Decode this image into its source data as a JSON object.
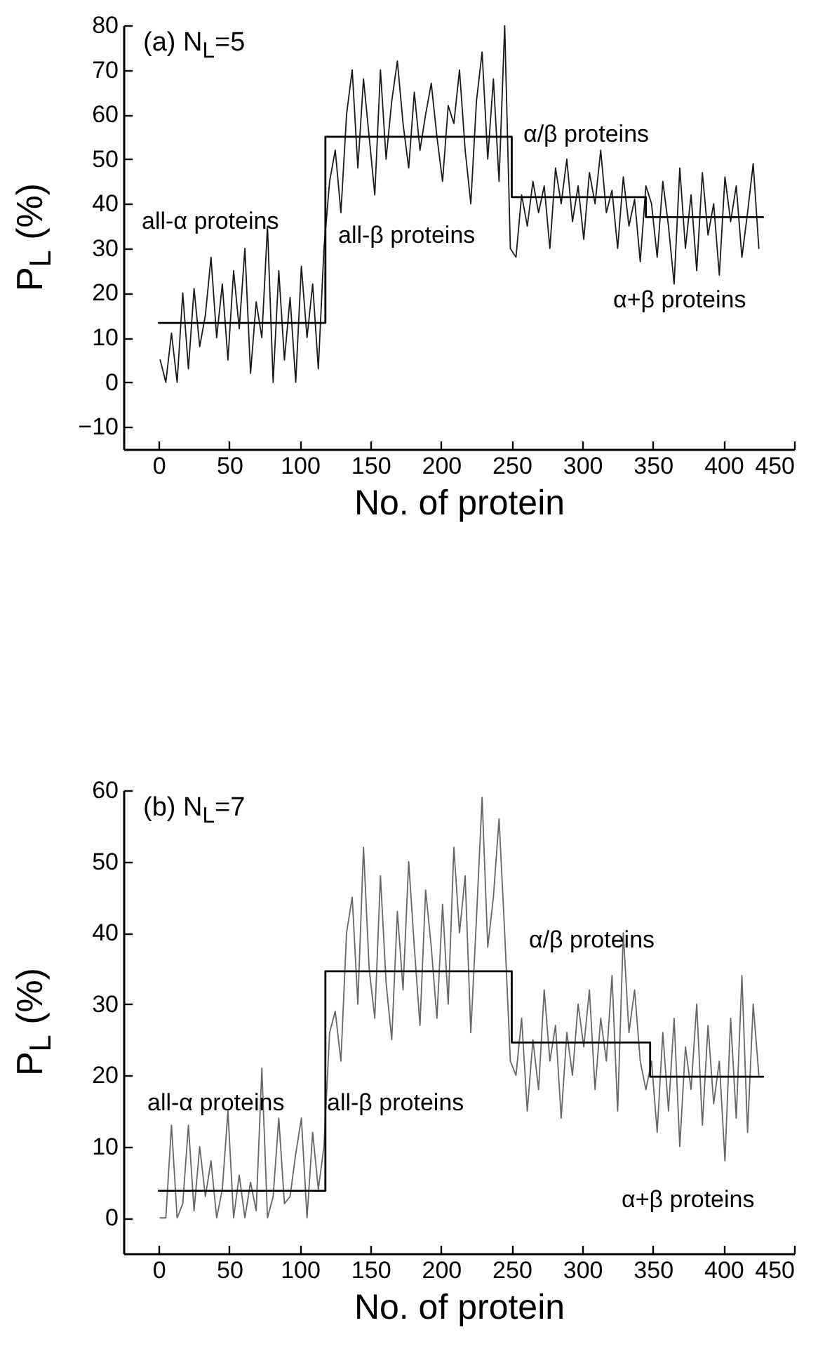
{
  "chart_data": [
    {
      "type": "line",
      "title": "(a) N$_{L}$=5",
      "xlabel": "No. of protein",
      "ylabel": "P$_{L}$ (%)",
      "xlim": [
        -25,
        450
      ],
      "ylim": [
        -15,
        80
      ],
      "xticks": [
        0,
        50,
        100,
        150,
        200,
        250,
        300,
        350,
        400,
        450
      ],
      "yticks": [
        -10,
        0,
        10,
        20,
        30,
        40,
        50,
        60,
        70,
        80
      ],
      "grid": false,
      "annotations": [
        "all-α proteins",
        "all-β proteins",
        "α/β proteins",
        "α+β proteins"
      ],
      "series": [
        {
          "type": "line",
          "color": "#1a1a1a",
          "x": [
            1,
            5,
            9,
            13,
            17,
            21,
            25,
            29,
            33,
            37,
            41,
            45,
            49,
            53,
            57,
            61,
            65,
            69,
            73,
            77,
            81,
            85,
            89,
            93,
            97,
            101,
            105,
            109,
            113,
            117,
            121,
            125,
            129,
            133,
            137,
            141,
            145,
            149,
            153,
            157,
            161,
            165,
            169,
            173,
            177,
            181,
            185,
            189,
            193,
            197,
            201,
            205,
            209,
            213,
            217,
            221,
            225,
            229,
            233,
            237,
            241,
            245,
            249,
            253,
            257,
            261,
            265,
            269,
            273,
            277,
            281,
            285,
            289,
            293,
            297,
            301,
            305,
            309,
            313,
            317,
            321,
            325,
            329,
            333,
            337,
            341,
            345,
            349,
            353,
            357,
            361,
            365,
            369,
            373,
            377,
            381,
            385,
            389,
            393,
            397,
            401,
            405,
            409,
            413,
            417,
            421,
            425
          ],
          "values": [
            5,
            0,
            11,
            0,
            20,
            3,
            21,
            8,
            15,
            28,
            10,
            22,
            5,
            25,
            12,
            30,
            2,
            18,
            10,
            35,
            0,
            25,
            5,
            19,
            0,
            26,
            10,
            22,
            3,
            30,
            45,
            52,
            38,
            60,
            70,
            48,
            68,
            55,
            42,
            70,
            50,
            63,
            72,
            58,
            48,
            65,
            52,
            60,
            67,
            55,
            45,
            62,
            58,
            70,
            52,
            40,
            63,
            74,
            50,
            68,
            45,
            80,
            30,
            28,
            42,
            35,
            45,
            38,
            44,
            30,
            48,
            40,
            50,
            36,
            44,
            32,
            47,
            40,
            52,
            38,
            43,
            30,
            46,
            35,
            41,
            27,
            44,
            40,
            28,
            45,
            35,
            22,
            48,
            30,
            42,
            25,
            47,
            33,
            40,
            24,
            46,
            36,
            44,
            28,
            38,
            49,
            30
          ]
        },
        {
          "type": "step",
          "color": "#000000",
          "x": [
            0,
            118,
            250,
            345,
            428
          ],
          "values": [
            13.3,
            55,
            41.5,
            37,
            37
          ]
        }
      ]
    },
    {
      "type": "line",
      "title": "(b) N$_{L}$=7",
      "xlabel": "No. of protein",
      "ylabel": "P$_{L}$ (%)",
      "xlim": [
        -25,
        450
      ],
      "ylim": [
        -5,
        60
      ],
      "xticks": [
        0,
        50,
        100,
        150,
        200,
        250,
        300,
        350,
        400,
        450
      ],
      "yticks": [
        0,
        10,
        20,
        30,
        40,
        50,
        60
      ],
      "grid": false,
      "annotations": [
        "all-α proteins",
        "all-β proteins",
        "α/β proteins",
        "α+β proteins"
      ],
      "series": [
        {
          "type": "line",
          "color": "#666666",
          "x": [
            1,
            5,
            9,
            13,
            17,
            21,
            25,
            29,
            33,
            37,
            41,
            45,
            49,
            53,
            57,
            61,
            65,
            69,
            73,
            77,
            81,
            85,
            89,
            93,
            97,
            101,
            105,
            109,
            113,
            117,
            121,
            125,
            129,
            133,
            137,
            141,
            145,
            149,
            153,
            157,
            161,
            165,
            169,
            173,
            177,
            181,
            185,
            189,
            193,
            197,
            201,
            205,
            209,
            213,
            217,
            221,
            225,
            229,
            233,
            237,
            241,
            245,
            249,
            253,
            257,
            261,
            265,
            269,
            273,
            277,
            281,
            285,
            289,
            293,
            297,
            301,
            305,
            309,
            313,
            317,
            321,
            325,
            329,
            333,
            337,
            341,
            345,
            349,
            353,
            357,
            361,
            365,
            369,
            373,
            377,
            381,
            385,
            389,
            393,
            397,
            401,
            405,
            409,
            413,
            417,
            421,
            425
          ],
          "values": [
            0,
            0,
            13,
            0,
            2,
            13,
            1,
            10,
            3,
            8,
            0,
            4,
            15,
            0,
            6,
            0,
            5,
            1,
            21,
            0,
            3,
            14,
            2,
            3,
            9,
            14,
            0,
            12,
            4,
            10,
            26,
            29,
            22,
            40,
            45,
            30,
            52,
            35,
            28,
            48,
            33,
            25,
            43,
            32,
            50,
            38,
            27,
            46,
            38,
            28,
            44,
            30,
            52,
            40,
            48,
            26,
            42,
            59,
            38,
            45,
            56,
            40,
            22,
            20,
            28,
            15,
            25,
            18,
            32,
            22,
            27,
            14,
            26,
            20,
            30,
            24,
            32,
            18,
            28,
            22,
            34,
            15,
            40,
            26,
            32,
            22,
            18,
            22,
            12,
            26,
            15,
            28,
            10,
            24,
            18,
            30,
            13,
            27,
            16,
            22,
            8,
            28,
            14,
            34,
            12,
            30,
            20
          ]
        },
        {
          "type": "step",
          "color": "#000000",
          "x": [
            0,
            118,
            250,
            348,
            428
          ],
          "values": [
            3.8,
            34.6,
            24.6,
            19.8,
            19.8
          ]
        }
      ]
    }
  ]
}
